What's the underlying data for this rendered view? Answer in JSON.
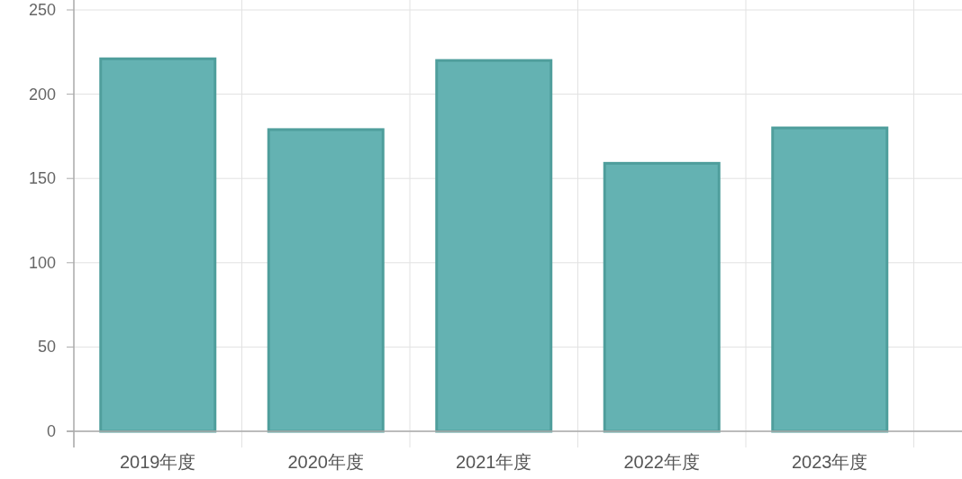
{
  "chart_data": {
    "type": "bar",
    "categories": [
      "2019年度",
      "2020年度",
      "2021年度",
      "2022年度",
      "2023年度"
    ],
    "values": [
      221,
      179,
      220,
      159,
      180
    ],
    "color": "#5fafaf",
    "ylim": [
      0,
      250
    ],
    "yticks": [
      0,
      50,
      100,
      150,
      200,
      250
    ],
    "grid": true
  }
}
